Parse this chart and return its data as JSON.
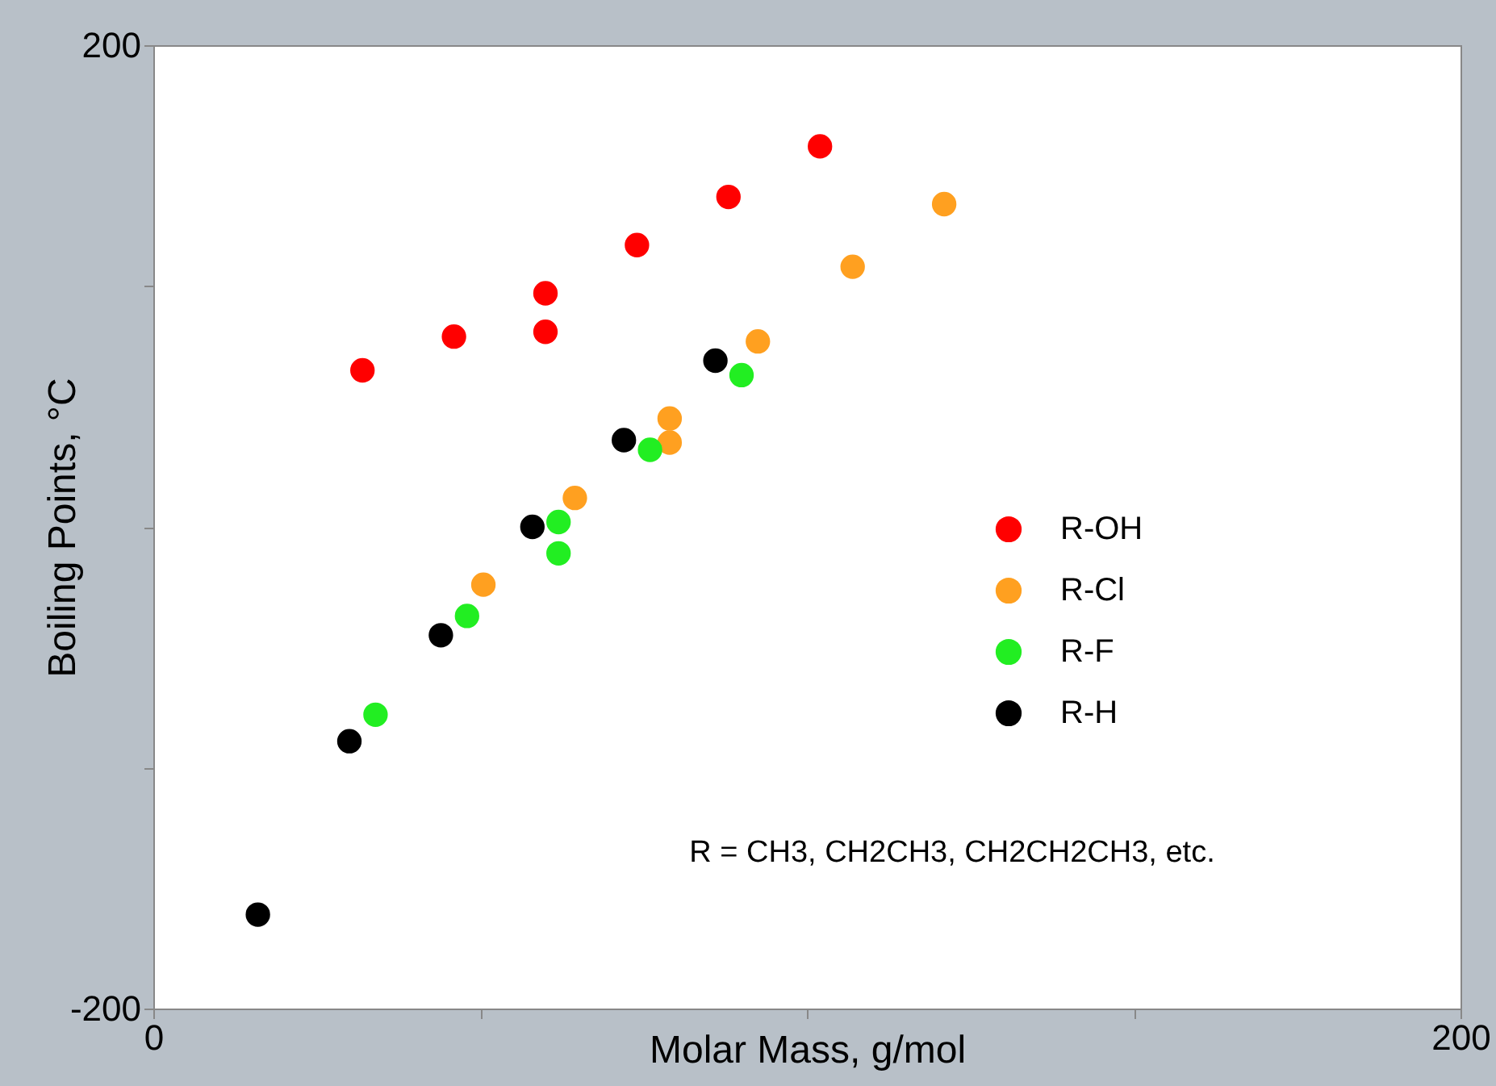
{
  "chart_data": {
    "type": "scatter",
    "xlabel": "Molar Mass,  g/mol",
    "ylabel": "Boiling Points,  °C",
    "xlim": [
      0,
      200
    ],
    "ylim": [
      -200,
      200
    ],
    "xticks": [
      0,
      {
        "value": 50,
        "label": null
      },
      {
        "value": 100,
        "label": null
      },
      {
        "value": 150,
        "label": null
      },
      200
    ],
    "yticks": [
      -200,
      {
        "value": -100,
        "label": null
      },
      {
        "value": 0,
        "label": null
      },
      {
        "value": 100,
        "label": null
      },
      200
    ],
    "grid": false,
    "legend": "right",
    "marker": "circle",
    "annotations": [
      "R = CH3, CH2CH3, CH2CH2CH3, etc."
    ],
    "series": [
      {
        "name": "R-OH",
        "color": "#ff0000",
        "x": [
          32,
          46,
          60,
          60,
          74,
          88,
          102
        ],
        "values": [
          65,
          79,
          97,
          81,
          117,
          137,
          158
        ]
      },
      {
        "name": "R-Cl",
        "color": "#ffa020",
        "x": [
          50.5,
          64.5,
          79,
          79,
          92.5,
          107,
          121
        ],
        "values": [
          -24,
          12,
          35,
          45,
          77,
          108,
          134
        ]
      },
      {
        "name": "R-F",
        "color": "#22ee22",
        "x": [
          34,
          48,
          62,
          62,
          76,
          90
        ],
        "values": [
          -78,
          -37,
          2,
          -11,
          32,
          63
        ]
      },
      {
        "name": "R-H",
        "color": "#000000",
        "x": [
          16,
          30,
          44,
          58,
          72,
          86
        ],
        "values": [
          -161,
          -89,
          -45,
          0,
          36,
          69
        ]
      }
    ]
  }
}
